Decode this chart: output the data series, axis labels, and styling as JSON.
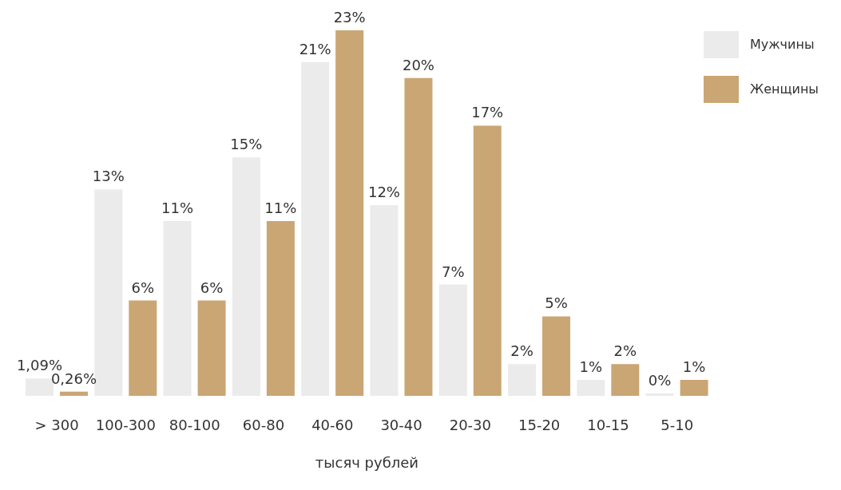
{
  "chart_data": {
    "type": "bar",
    "xlabel": "тысяч рублей",
    "categories": [
      "> 300",
      "100-300",
      "80-100",
      "60-80",
      "40-60",
      "30-40",
      "20-30",
      "15-20",
      "10-15",
      "5-10"
    ],
    "series": [
      {
        "name": "Мужчины",
        "color": "#ebebeb",
        "values": [
          1.09,
          13,
          11,
          15,
          21,
          12,
          7,
          2,
          1,
          0
        ],
        "value_labels": [
          "1,09%",
          "13%",
          "11%",
          "15%",
          "21%",
          "12%",
          "7%",
          "2%",
          "1%",
          "0%"
        ]
      },
      {
        "name": "Женщины",
        "color": "#caa675",
        "values": [
          0.26,
          6,
          6,
          11,
          23,
          20,
          17,
          5,
          2,
          1
        ],
        "value_labels": [
          "0,26%",
          "6%",
          "6%",
          "11%",
          "23%",
          "20%",
          "17%",
          "5%",
          "2%",
          "1%"
        ]
      }
    ],
    "legend": "top right"
  }
}
